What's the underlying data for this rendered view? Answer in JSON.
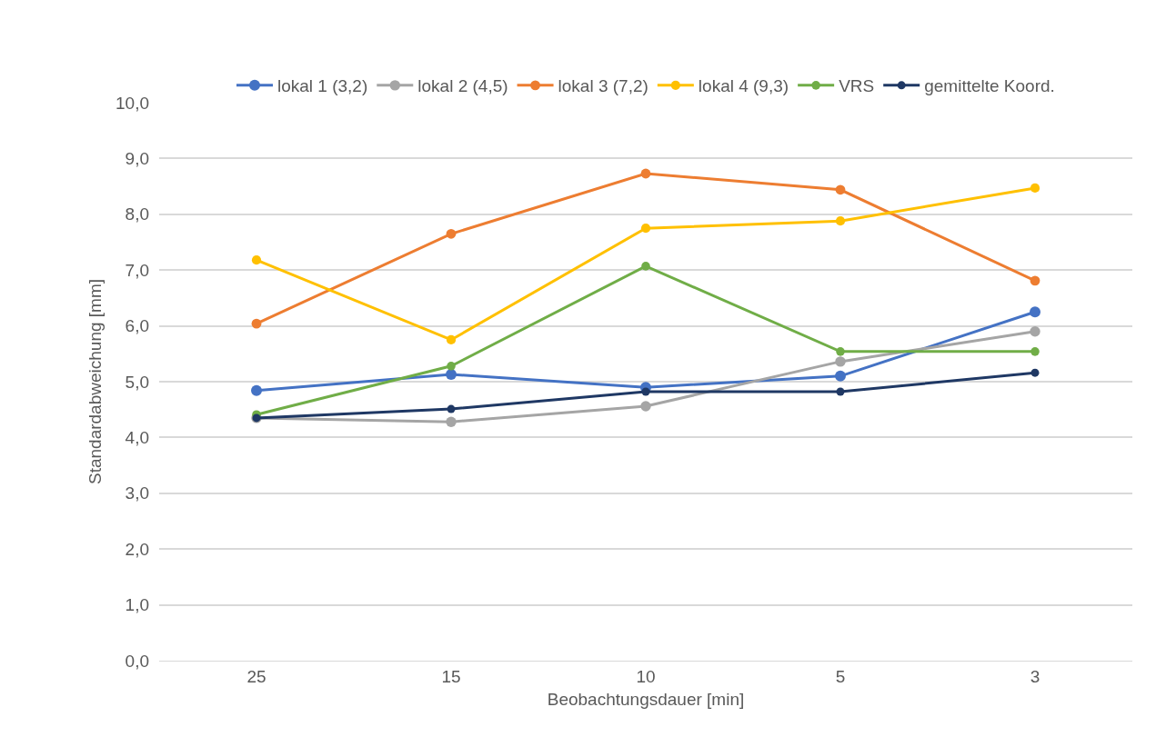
{
  "chart_data": {
    "type": "line",
    "xlabel": "Beobachtungsdauer [min]",
    "ylabel": "Standardabweichung [mm]",
    "categories": [
      "25",
      "15",
      "10",
      "5",
      "3"
    ],
    "series": [
      {
        "name": "lokal 1 (3,2)",
        "color": "#4472c4",
        "values": [
          4.84,
          5.13,
          4.9,
          5.1,
          6.25
        ]
      },
      {
        "name": "lokal 2 (4,5)",
        "color": "#a5a5a5",
        "values": [
          4.35,
          4.28,
          4.56,
          5.36,
          5.9
        ]
      },
      {
        "name": "lokal 3 (7,2)",
        "color": "#ed7d31",
        "values": [
          6.04,
          7.65,
          8.73,
          8.44,
          6.81
        ]
      },
      {
        "name": "lokal 4 (9,3)",
        "color": "#ffc000",
        "values": [
          7.18,
          5.75,
          7.75,
          7.88,
          8.47
        ]
      },
      {
        "name": "VRS",
        "color": "#70ad47",
        "values": [
          4.41,
          5.28,
          7.07,
          5.54,
          5.54
        ]
      },
      {
        "name": "gemittelte Koord.",
        "color": "#1f3864",
        "values": [
          4.35,
          4.51,
          4.82,
          4.82,
          5.16
        ]
      }
    ],
    "ylim": [
      0,
      10
    ],
    "yticks": [
      {
        "value": 0,
        "label": "0,0"
      },
      {
        "value": 1,
        "label": "1,0"
      },
      {
        "value": 2,
        "label": "2,0"
      },
      {
        "value": 3,
        "label": "3,0"
      },
      {
        "value": 4,
        "label": "4,0"
      },
      {
        "value": 5,
        "label": "5,0"
      },
      {
        "value": 6,
        "label": "6,0"
      },
      {
        "value": 7,
        "label": "7,0"
      },
      {
        "value": 8,
        "label": "8,0"
      },
      {
        "value": 9,
        "label": "9,0"
      },
      {
        "value": 10,
        "label": "10,0"
      }
    ],
    "grid": "y",
    "legend": "top",
    "marker": "circle",
    "line_style": "solid"
  }
}
